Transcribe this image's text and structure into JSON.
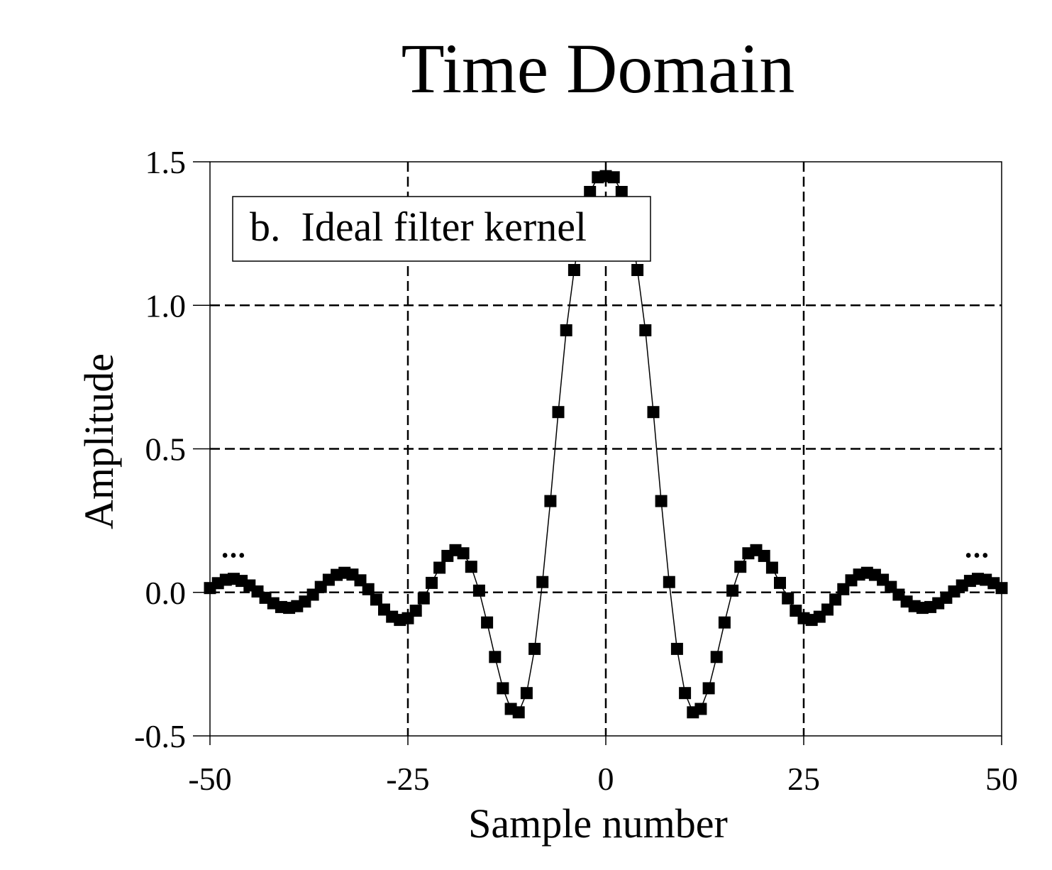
{
  "chart_data": {
    "type": "scatter",
    "title": "Time Domain",
    "xlabel": "Sample number",
    "ylabel": "Amplitude",
    "annotation": "b.  Ideal filter kernel",
    "continuation_marker": "•••",
    "xlim": [
      -50,
      50
    ],
    "ylim": [
      -0.5,
      1.5
    ],
    "x_ticks": [
      -50,
      -25,
      0,
      25,
      50
    ],
    "x_tick_labels": [
      "-50",
      "-25",
      "0",
      "25",
      "50"
    ],
    "y_ticks": [
      -0.5,
      0.0,
      0.5,
      1.0,
      1.5
    ],
    "y_tick_labels": [
      "-0.5",
      "0.0",
      "0.5",
      "1.0",
      "1.5"
    ],
    "grid": "dashed lines at x = -25, 0, 25 and y = 0.0, 0.5, 1.0",
    "grid_x": [
      -25,
      0,
      25
    ],
    "grid_y": [
      0.0,
      0.5,
      1.0
    ],
    "series": [
      {
        "marker": "square",
        "line": "thin solid",
        "x": [
          -50,
          -49,
          -48,
          -47,
          -46,
          -45,
          -44,
          -43,
          -42,
          -41,
          -40,
          -39,
          -38,
          -37,
          -36,
          -35,
          -34,
          -33,
          -32,
          -31,
          -30,
          -29,
          -28,
          -27,
          -26,
          -25,
          -24,
          -23,
          -22,
          -21,
          -20,
          -19,
          -18,
          -17,
          -16,
          -15,
          -14,
          -13,
          -12,
          -11,
          -10,
          -9,
          -8,
          -7,
          -6,
          -5,
          -4,
          -3,
          -2,
          -1,
          0,
          1,
          2,
          3,
          4,
          5,
          6,
          7,
          8,
          9,
          10,
          11,
          12,
          13,
          14,
          15,
          16,
          17,
          18,
          19,
          20,
          21,
          22,
          23,
          24,
          25,
          26,
          27,
          28,
          29,
          30,
          31,
          32,
          33,
          34,
          35,
          36,
          37,
          38,
          39,
          40,
          41,
          42,
          43,
          44,
          45,
          46,
          47,
          48,
          49,
          50
        ],
        "y": [
          0.015,
          0.032,
          0.044,
          0.047,
          0.04,
          0.024,
          0.003,
          -0.019,
          -0.038,
          -0.051,
          -0.054,
          -0.048,
          -0.032,
          -0.008,
          0.019,
          0.044,
          0.061,
          0.068,
          0.062,
          0.042,
          0.011,
          -0.025,
          -0.06,
          -0.085,
          -0.096,
          -0.09,
          -0.064,
          -0.021,
          0.033,
          0.086,
          0.127,
          0.147,
          0.136,
          0.089,
          0.006,
          -0.105,
          -0.225,
          -0.334,
          -0.406,
          -0.418,
          -0.351,
          -0.197,
          0.036,
          0.318,
          0.628,
          0.913,
          1.123,
          1.287,
          1.395,
          1.446,
          1.45,
          1.446,
          1.395,
          1.287,
          1.123,
          0.913,
          0.628,
          0.318,
          0.036,
          -0.197,
          -0.351,
          -0.418,
          -0.406,
          -0.334,
          -0.225,
          -0.105,
          0.006,
          0.089,
          0.136,
          0.147,
          0.127,
          0.086,
          0.033,
          -0.021,
          -0.064,
          -0.09,
          -0.096,
          -0.085,
          -0.06,
          -0.025,
          0.011,
          0.042,
          0.062,
          0.068,
          0.061,
          0.044,
          0.019,
          -0.008,
          -0.032,
          -0.048,
          -0.054,
          -0.051,
          -0.038,
          -0.019,
          0.003,
          0.024,
          0.04,
          0.047,
          0.044,
          0.032,
          0.015
        ]
      }
    ]
  }
}
